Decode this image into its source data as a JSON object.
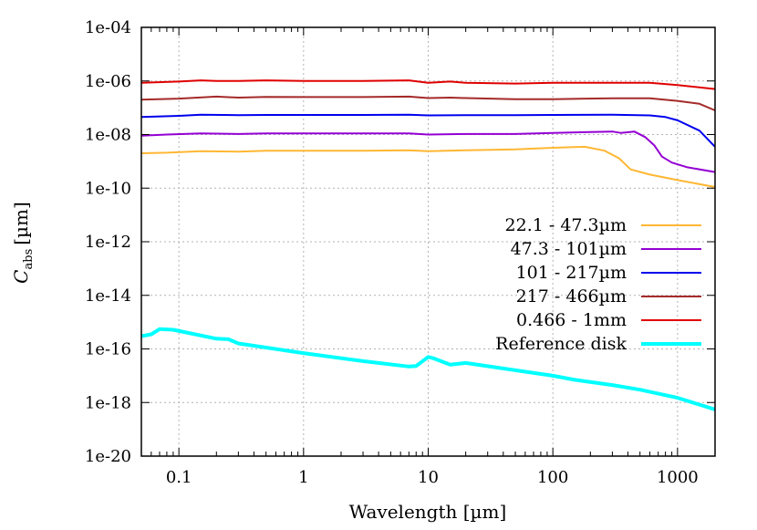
{
  "chart_data": {
    "type": "line",
    "title": "",
    "xlabel": "Wavelength [µm]",
    "ylabel": "C_abs [µm]",
    "ylabel_main": "C",
    "ylabel_sub": "abs",
    "ylabel_unit": "[µm]",
    "x_scale": "log",
    "y_scale": "log",
    "xlim": [
      0.05,
      2000
    ],
    "ylim": [
      1e-20,
      0.0001
    ],
    "x_ticks": [
      0.1,
      1,
      10,
      100,
      1000
    ],
    "x_tick_labels": [
      "0.1",
      "1",
      "10",
      "100",
      "1000"
    ],
    "y_ticks": [
      1e-20,
      1e-18,
      1e-16,
      1e-14,
      1e-12,
      1e-10,
      1e-08,
      1e-06,
      0.0001
    ],
    "y_tick_labels": [
      "1e-20",
      "1e-18",
      "1e-16",
      "1e-14",
      "1e-12",
      "1e-10",
      "1e-08",
      "1e-06",
      "1e-04"
    ],
    "grid": true,
    "legend_position": "right",
    "series": [
      {
        "name": "22.1 - 47.3µm",
        "color": "#ffb733",
        "line_width": 2,
        "points": [
          [
            0.05,
            2e-09
          ],
          [
            0.08,
            2.1e-09
          ],
          [
            0.15,
            2.4e-09
          ],
          [
            0.3,
            2.3e-09
          ],
          [
            0.5,
            2.5e-09
          ],
          [
            1,
            2.5e-09
          ],
          [
            3,
            2.5e-09
          ],
          [
            7,
            2.6e-09
          ],
          [
            10,
            2.4e-09
          ],
          [
            20,
            2.6e-09
          ],
          [
            50,
            2.8e-09
          ],
          [
            100,
            3.2e-09
          ],
          [
            180,
            3.5e-09
          ],
          [
            260,
            2.5e-09
          ],
          [
            340,
            1.3e-09
          ],
          [
            420,
            5e-10
          ],
          [
            600,
            3.2e-10
          ],
          [
            1000,
            2e-10
          ],
          [
            2000,
            1.1e-10
          ]
        ]
      },
      {
        "name": "47.3 - 101µm",
        "color": "#9400d3",
        "line_width": 2,
        "points": [
          [
            0.05,
            9e-09
          ],
          [
            0.08,
            1e-08
          ],
          [
            0.15,
            1.1e-08
          ],
          [
            0.3,
            1.05e-08
          ],
          [
            0.5,
            1.1e-08
          ],
          [
            1,
            1.1e-08
          ],
          [
            3,
            1.1e-08
          ],
          [
            7,
            1.1e-08
          ],
          [
            10,
            1e-08
          ],
          [
            20,
            1.05e-08
          ],
          [
            50,
            1.05e-08
          ],
          [
            100,
            1.15e-08
          ],
          [
            200,
            1.25e-08
          ],
          [
            300,
            1.3e-08
          ],
          [
            350,
            1.15e-08
          ],
          [
            450,
            1.3e-08
          ],
          [
            550,
            8e-09
          ],
          [
            650,
            4e-09
          ],
          [
            750,
            1.5e-09
          ],
          [
            900,
            9e-10
          ],
          [
            1200,
            6e-10
          ],
          [
            2000,
            4e-10
          ]
        ]
      },
      {
        "name": "101 - 217µm",
        "color": "#0000ee",
        "line_width": 2,
        "points": [
          [
            0.05,
            4.5e-08
          ],
          [
            0.1,
            5e-08
          ],
          [
            0.15,
            5.5e-08
          ],
          [
            0.3,
            5.3e-08
          ],
          [
            0.5,
            5.4e-08
          ],
          [
            1,
            5.4e-08
          ],
          [
            3,
            5.4e-08
          ],
          [
            7,
            5.5e-08
          ],
          [
            10,
            5.2e-08
          ],
          [
            20,
            5.3e-08
          ],
          [
            50,
            5.3e-08
          ],
          [
            100,
            5.4e-08
          ],
          [
            300,
            5.5e-08
          ],
          [
            600,
            5.2e-08
          ],
          [
            800,
            4.5e-08
          ],
          [
            1000,
            3.4e-08
          ],
          [
            1500,
            1.4e-08
          ],
          [
            2000,
            3.5e-09
          ]
        ]
      },
      {
        "name": "217 - 466µm",
        "color": "#a52a2a",
        "line_width": 2,
        "points": [
          [
            0.05,
            2e-07
          ],
          [
            0.1,
            2.2e-07
          ],
          [
            0.2,
            2.6e-07
          ],
          [
            0.3,
            2.4e-07
          ],
          [
            0.5,
            2.55e-07
          ],
          [
            1,
            2.5e-07
          ],
          [
            3,
            2.5e-07
          ],
          [
            7,
            2.6e-07
          ],
          [
            10,
            2.3e-07
          ],
          [
            15,
            2.4e-07
          ],
          [
            20,
            2.3e-07
          ],
          [
            50,
            2.1e-07
          ],
          [
            100,
            2.1e-07
          ],
          [
            300,
            2.25e-07
          ],
          [
            600,
            2.25e-07
          ],
          [
            1000,
            1.8e-07
          ],
          [
            1500,
            1.4e-07
          ],
          [
            2000,
            8e-08
          ]
        ]
      },
      {
        "name": "0.466 - 1mm",
        "color": "#e00000",
        "line_width": 2,
        "points": [
          [
            0.05,
            8.5e-07
          ],
          [
            0.1,
            9.5e-07
          ],
          [
            0.15,
            1.05e-06
          ],
          [
            0.2,
            1e-06
          ],
          [
            0.3,
            1e-06
          ],
          [
            0.5,
            1.05e-06
          ],
          [
            1,
            1e-06
          ],
          [
            3,
            1e-06
          ],
          [
            7,
            1.05e-06
          ],
          [
            10,
            8.5e-07
          ],
          [
            15,
            9.5e-07
          ],
          [
            20,
            8.5e-07
          ],
          [
            50,
            8e-07
          ],
          [
            100,
            8.5e-07
          ],
          [
            300,
            8.5e-07
          ],
          [
            600,
            8.5e-07
          ],
          [
            1000,
            7e-07
          ],
          [
            2000,
            5e-07
          ]
        ]
      },
      {
        "name": "Reference disk",
        "color": "#00ffff",
        "line_width": 4,
        "points": [
          [
            0.05,
            3e-16
          ],
          [
            0.06,
            3.5e-16
          ],
          [
            0.07,
            5.5e-16
          ],
          [
            0.09,
            5.2e-16
          ],
          [
            0.2,
            2.4e-16
          ],
          [
            0.25,
            2.3e-16
          ],
          [
            0.3,
            1.6e-16
          ],
          [
            1,
            7e-17
          ],
          [
            3,
            3.5e-17
          ],
          [
            7,
            2.2e-17
          ],
          [
            8,
            2.3e-17
          ],
          [
            10,
            5e-17
          ],
          [
            11,
            4.5e-17
          ],
          [
            15,
            2.6e-17
          ],
          [
            20,
            3e-17
          ],
          [
            50,
            1.6e-17
          ],
          [
            100,
            1e-17
          ],
          [
            150,
            7e-18
          ],
          [
            300,
            4.5e-18
          ],
          [
            500,
            3e-18
          ],
          [
            1000,
            1.5e-18
          ],
          [
            2000,
            5.5e-19
          ]
        ]
      }
    ]
  }
}
